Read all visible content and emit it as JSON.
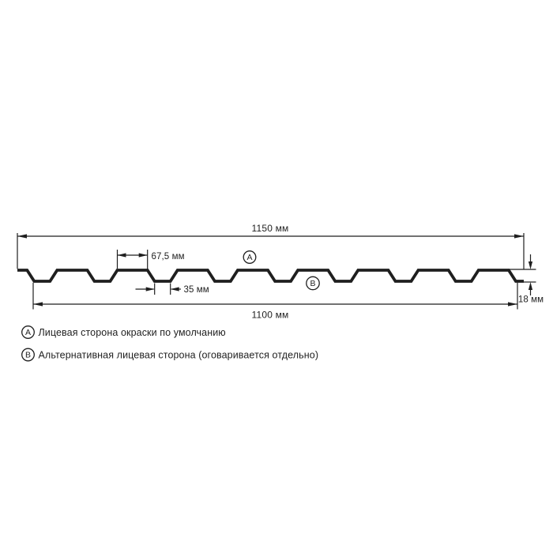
{
  "colors": {
    "background": "#ffffff",
    "line": "#1f1f1f"
  },
  "drawing": {
    "overall_width_label": "1150 мм",
    "overall_width_value": 1150,
    "cover_width_label": "1100 мм",
    "cover_width_value": 1100,
    "crest_width_label": "67,5 мм",
    "crest_width_value": 67.5,
    "trough_width_label": "35 мм",
    "trough_width_value": 35,
    "profile_height_label": "18 мм",
    "profile_height_value": 18,
    "unit": "мм",
    "trough_count": 9
  },
  "markers": {
    "front_side": "A",
    "back_side": "B"
  },
  "legend": {
    "items": [
      {
        "marker": "A",
        "text": "Лицевая сторона окраски по умолчанию"
      },
      {
        "marker": "B",
        "text": "Альтернативная лицевая сторона (оговаривается отдельно)"
      }
    ]
  }
}
